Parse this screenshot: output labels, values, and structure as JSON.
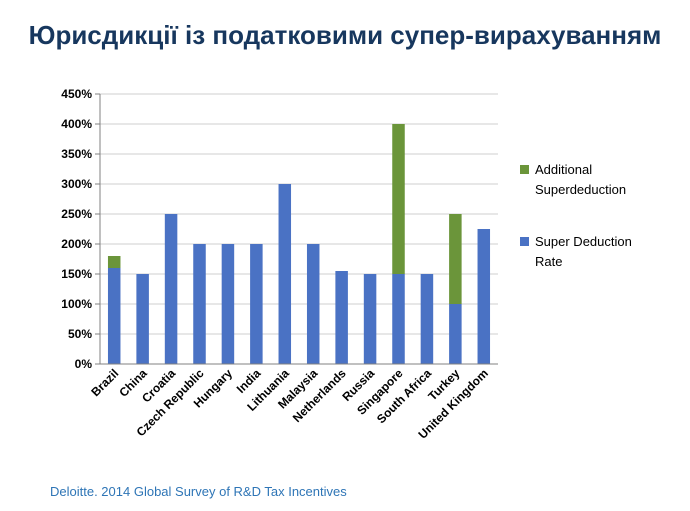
{
  "title": "Юрисдикції із податковими супер-вирахуванням",
  "source": "Deloitte. 2014 Global Survey of R&D Tax Incentives",
  "colors": {
    "base": "#4a72c4",
    "additional": "#6b953a",
    "axis": "#808080",
    "grid": "#cfcfcf",
    "title": "#17375e",
    "source": "#2e75b6"
  },
  "chart_data": {
    "type": "bar",
    "stacked": true,
    "categories": [
      "Brazil",
      "China",
      "Croatia",
      "Czech Republic",
      "Hungary",
      "India",
      "Lithuania",
      "Malaysia",
      "Netherlands",
      "Russia",
      "Singapore",
      "South Africa",
      "Turkey",
      "United Kingdom"
    ],
    "series": [
      {
        "name": "Super Deduction Rate",
        "values": [
          160,
          150,
          250,
          200,
          200,
          200,
          300,
          200,
          155,
          150,
          150,
          150,
          100,
          225
        ]
      },
      {
        "name": "Additional Superdeduction",
        "values": [
          20,
          0,
          0,
          0,
          0,
          0,
          0,
          0,
          0,
          0,
          250,
          0,
          150,
          0
        ]
      }
    ],
    "ylim": [
      0,
      450
    ],
    "yticks": [
      0,
      50,
      100,
      150,
      200,
      250,
      300,
      350,
      400,
      450
    ],
    "ytick_labels": [
      "0%",
      "50%",
      "100%",
      "150%",
      "200%",
      "250%",
      "300%",
      "350%",
      "400%",
      "450%"
    ],
    "grid": true,
    "legend": {
      "position": "right",
      "entries": [
        {
          "label": "Additional Superdeduction",
          "lines": [
            "Additional",
            "Superdeduction"
          ]
        },
        {
          "label": "Super Deduction Rate",
          "lines": [
            "Super Deduction",
            "Rate"
          ]
        }
      ]
    }
  }
}
